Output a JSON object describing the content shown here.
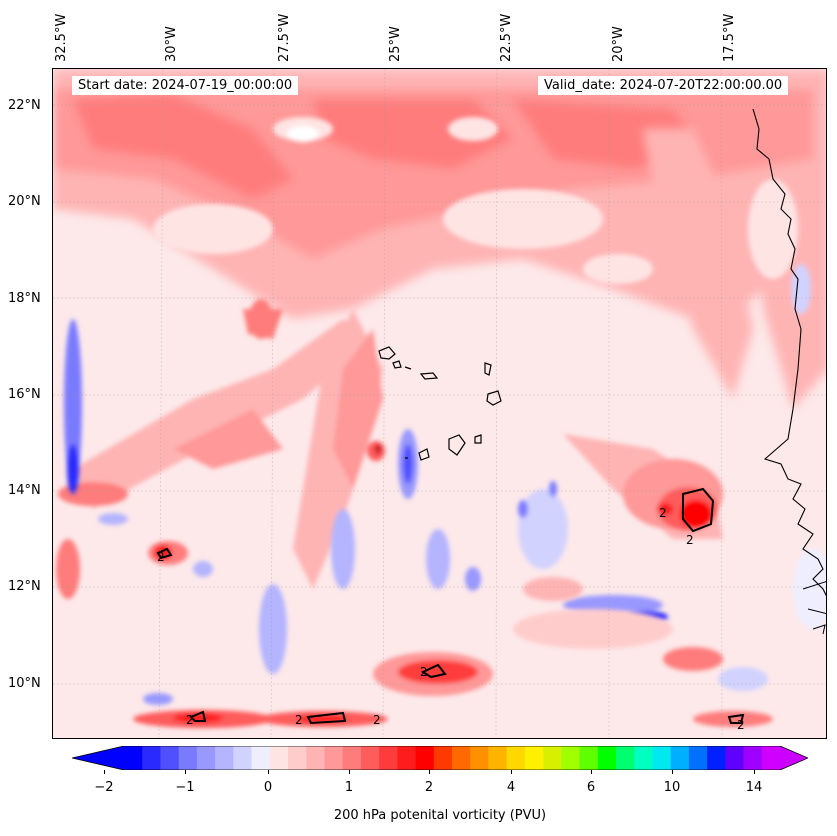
{
  "map": {
    "start_date": "Start date: 2024-07-19_00:00:00",
    "valid_date": "Valid_date: 2024-07-20T22:00:00.00",
    "lon_labels": [
      "32.5°W",
      "30°W",
      "27.5°W",
      "25°W",
      "22.5°W",
      "20°W",
      "17.5°W"
    ],
    "lat_labels": [
      "22°N",
      "20°N",
      "18°N",
      "16°N",
      "14°N",
      "12°N",
      "10°N"
    ],
    "contour_label": "2"
  },
  "colorbar": {
    "label": "200 hPa potenital vorticity (PVU)",
    "ticks": [
      "−2",
      "−1",
      "0",
      "1",
      "2",
      "4",
      "6",
      "10",
      "14"
    ],
    "colors": [
      "#0000ff",
      "#2a2aff",
      "#5050ff",
      "#7a7aff",
      "#9898ff",
      "#b4b4ff",
      "#d2d2ff",
      "#eeeeff",
      "#ffe4e4",
      "#ffcccc",
      "#ffb4b4",
      "#ff9898",
      "#ff7c7c",
      "#ff5c5c",
      "#ff3c3c",
      "#ff1c1c",
      "#ff0000",
      "#ff3a00",
      "#ff6a00",
      "#ff9000",
      "#ffb400",
      "#ffd800",
      "#fff000",
      "#d8f000",
      "#a0ff00",
      "#60ff00",
      "#00ff00",
      "#00ff70",
      "#00ffc0",
      "#00e8f0",
      "#00b0ff",
      "#0070ff",
      "#0020ff",
      "#6000ff",
      "#a000ff",
      "#d000ff"
    ],
    "under_color": "#0000ff",
    "over_color": "#cc00ff"
  }
}
